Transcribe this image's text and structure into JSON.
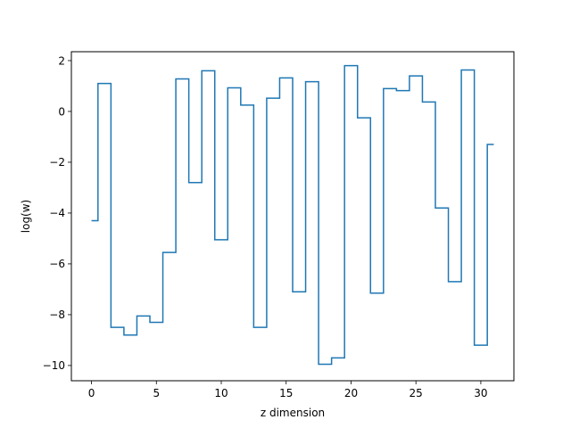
{
  "chart_data": {
    "type": "line",
    "drawstyle": "steps-mid",
    "xlabel": "z dimension",
    "ylabel": "log(w)",
    "xlim": [
      -1.55,
      32.55
    ],
    "ylim": [
      -10.6,
      2.35
    ],
    "xticks": [
      0,
      5,
      10,
      15,
      20,
      25,
      30
    ],
    "yticks": [
      -10,
      -8,
      -6,
      -4,
      -2,
      0,
      2
    ],
    "grid": false,
    "legend": "none",
    "line_color": "#1f77b4",
    "x": [
      0,
      1,
      2,
      3,
      4,
      5,
      6,
      7,
      8,
      9,
      10,
      11,
      12,
      13,
      14,
      15,
      16,
      17,
      18,
      19,
      20,
      21,
      22,
      23,
      24,
      25,
      26,
      27,
      28,
      29,
      30,
      31
    ],
    "y": [
      -4.3,
      1.1,
      -8.5,
      -8.8,
      -8.05,
      -8.3,
      -5.55,
      1.28,
      -2.8,
      1.6,
      -5.05,
      0.93,
      0.25,
      -8.5,
      0.52,
      1.32,
      -7.1,
      1.17,
      -9.95,
      -9.7,
      1.8,
      -0.25,
      -7.15,
      0.9,
      0.82,
      1.4,
      0.37,
      -3.8,
      -6.7,
      1.63,
      -9.2,
      -1.3
    ]
  }
}
